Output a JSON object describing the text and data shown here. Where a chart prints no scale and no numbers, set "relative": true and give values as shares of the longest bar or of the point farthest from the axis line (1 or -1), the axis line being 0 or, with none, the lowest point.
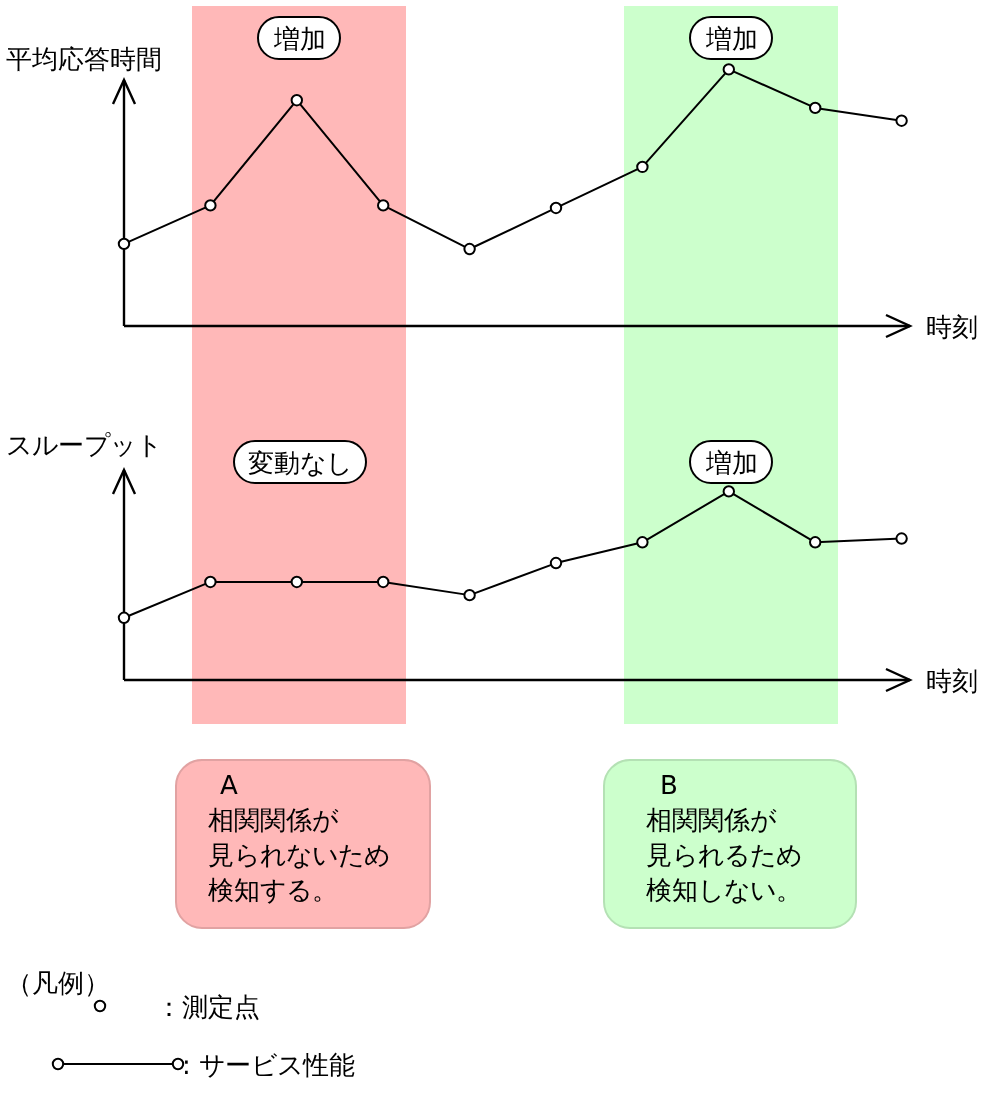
{
  "chart_data": [
    {
      "type": "line",
      "ylabel": "平均応答時間",
      "xlabel": "時刻",
      "relative": true,
      "categories": [
        null,
        null,
        null,
        null,
        null,
        null,
        null,
        null,
        null,
        null
      ],
      "series": [
        {
          "color": "#000000",
          "values": [
            0.32,
            0.47,
            0.88,
            0.47,
            0.3,
            0.46,
            0.62,
            1,
            0.85,
            0.8
          ]
        }
      ],
      "marker": "circle",
      "line_style": "solid",
      "annotations": [
        "増加",
        "増加"
      ]
    },
    {
      "type": "line",
      "ylabel": "スループット",
      "xlabel": "時刻",
      "relative": true,
      "categories": [
        null,
        null,
        null,
        null,
        null,
        null,
        null,
        null,
        null,
        null
      ],
      "series": [
        {
          "color": "#000000",
          "values": [
            0.33,
            0.52,
            0.52,
            0.52,
            0.45,
            0.62,
            0.73,
            1,
            0.73,
            0.75
          ]
        }
      ],
      "marker": "circle",
      "line_style": "solid",
      "annotations": [
        "変動なし",
        "増加",
        "A",
        "相関関係が見られないため検知する。",
        "B",
        "相関関係が見られるため検知しない。",
        "（凡例）",
        "：測定点",
        ": サービス性能"
      ]
    }
  ]
}
